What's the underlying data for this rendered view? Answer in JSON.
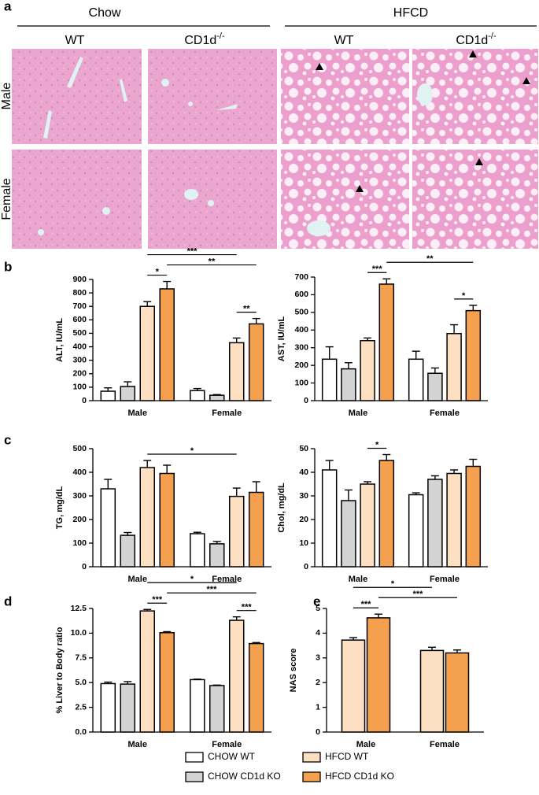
{
  "panel_a": {
    "label": "a",
    "diets": [
      "Chow",
      "HFCD"
    ],
    "genotypes": [
      "WT",
      {
        "text": "CD1d",
        "sup": "-/-"
      }
    ],
    "sexes": [
      "Male",
      "Female"
    ]
  },
  "chart_data": [
    {
      "type": "bar",
      "label": "b",
      "ylabel": "ALT, IU/mL",
      "categories": [
        "Male",
        "Female"
      ],
      "ylim": [
        0,
        900
      ],
      "yticks": [
        0,
        100,
        200,
        300,
        400,
        500,
        600,
        700,
        800,
        900
      ],
      "series": [
        {
          "color": "#ffffff",
          "values": [
            70,
            75
          ],
          "errors": [
            25,
            15
          ]
        },
        {
          "color": "#d3d3d3",
          "values": [
            105,
            40
          ],
          "errors": [
            35,
            5
          ]
        },
        {
          "color": "#fde0c2",
          "values": [
            700,
            430
          ],
          "errors": [
            35,
            35
          ]
        },
        {
          "color": "#f5a04e",
          "values": [
            830,
            570
          ],
          "errors": [
            55,
            40
          ]
        }
      ],
      "annotations": [
        {
          "text": "**",
          "between": [
            [
              2,
              1
            ],
            [
              3,
              1
            ]
          ]
        },
        {
          "text": "*",
          "between": [
            [
              2,
              0
            ],
            [
              3,
              0
            ]
          ]
        },
        {
          "text": "**",
          "between": [
            [
              3,
              0
            ],
            [
              3,
              1
            ]
          ]
        },
        {
          "text": "***",
          "between": [
            [
              2,
              0
            ],
            [
              2,
              1
            ]
          ]
        }
      ]
    },
    {
      "type": "bar",
      "ylabel": "AST, IU/mL",
      "categories": [
        "Male",
        "Female"
      ],
      "ylim": [
        0,
        700
      ],
      "yticks": [
        0,
        100,
        200,
        300,
        400,
        500,
        600,
        700
      ],
      "series": [
        {
          "color": "#ffffff",
          "values": [
            235,
            235
          ],
          "errors": [
            70,
            45
          ]
        },
        {
          "color": "#d3d3d3",
          "values": [
            180,
            155
          ],
          "errors": [
            35,
            30
          ]
        },
        {
          "color": "#fde0c2",
          "values": [
            340,
            380
          ],
          "errors": [
            15,
            50
          ]
        },
        {
          "color": "#f5a04e",
          "values": [
            660,
            510
          ],
          "errors": [
            30,
            30
          ]
        }
      ],
      "annotations": [
        {
          "text": "*",
          "between": [
            [
              2,
              1
            ],
            [
              3,
              1
            ]
          ]
        },
        {
          "text": "***",
          "between": [
            [
              2,
              0
            ],
            [
              3,
              0
            ]
          ]
        },
        {
          "text": "**",
          "between": [
            [
              3,
              0
            ],
            [
              3,
              1
            ]
          ]
        }
      ]
    },
    {
      "type": "bar",
      "label": "c",
      "ylabel": "TG, mg/dL",
      "categories": [
        "Male",
        "Female"
      ],
      "ylim": [
        0,
        500
      ],
      "yticks": [
        0,
        100,
        200,
        300,
        400,
        500
      ],
      "series": [
        {
          "color": "#ffffff",
          "values": [
            330,
            140
          ],
          "errors": [
            40,
            6
          ]
        },
        {
          "color": "#d3d3d3",
          "values": [
            133,
            97
          ],
          "errors": [
            12,
            10
          ]
        },
        {
          "color": "#fde0c2",
          "values": [
            420,
            298
          ],
          "errors": [
            30,
            35
          ]
        },
        {
          "color": "#f5a04e",
          "values": [
            395,
            315
          ],
          "errors": [
            35,
            45
          ]
        }
      ],
      "annotations": [
        {
          "text": "*",
          "between": [
            [
              2,
              0
            ],
            [
              2,
              1
            ]
          ]
        }
      ]
    },
    {
      "type": "bar",
      "ylabel": "Chol, mg/dL",
      "categories": [
        "Male",
        "Female"
      ],
      "ylim": [
        0,
        50
      ],
      "yticks": [
        0,
        10,
        20,
        30,
        40,
        50
      ],
      "series": [
        {
          "color": "#ffffff",
          "values": [
            41,
            30.5
          ],
          "errors": [
            4,
            0.8
          ]
        },
        {
          "color": "#d3d3d3",
          "values": [
            28,
            37
          ],
          "errors": [
            4.5,
            1.5
          ]
        },
        {
          "color": "#fde0c2",
          "values": [
            35,
            39.5
          ],
          "errors": [
            1,
            1.5
          ]
        },
        {
          "color": "#f5a04e",
          "values": [
            45,
            42.5
          ],
          "errors": [
            2.5,
            3
          ]
        }
      ],
      "annotations": [
        {
          "text": "*",
          "between": [
            [
              2,
              0
            ],
            [
              3,
              0
            ]
          ]
        }
      ]
    },
    {
      "type": "bar",
      "label": "d",
      "ylabel": "% Liver to Body ratio",
      "categories": [
        "Male",
        "Female"
      ],
      "ylim": [
        0,
        12.5
      ],
      "yticks": [
        {
          "value": 0,
          "label": "0.0"
        },
        2.5,
        {
          "value": 5,
          "label": "5.0"
        },
        7.5,
        {
          "value": 10,
          "label": "10.0"
        },
        12.5
      ],
      "series": [
        {
          "color": "#ffffff",
          "values": [
            4.9,
            5.3
          ],
          "errors": [
            0.15,
            0.05
          ]
        },
        {
          "color": "#d3d3d3",
          "values": [
            4.85,
            4.7
          ],
          "errors": [
            0.25,
            0.05
          ]
        },
        {
          "color": "#fde0c2",
          "values": [
            12.25,
            11.3
          ],
          "errors": [
            0.15,
            0.35
          ]
        },
        {
          "color": "#f5a04e",
          "values": [
            10.05,
            8.95
          ],
          "errors": [
            0.1,
            0.1
          ]
        }
      ],
      "annotations": [
        {
          "text": "***",
          "between": [
            [
              2,
              0
            ],
            [
              3,
              0
            ]
          ]
        },
        {
          "text": "***",
          "between": [
            [
              2,
              1
            ],
            [
              3,
              1
            ]
          ]
        },
        {
          "text": "***",
          "between": [
            [
              3,
              0
            ],
            [
              3,
              1
            ]
          ]
        },
        {
          "text": "*",
          "between": [
            [
              2,
              0
            ],
            [
              2,
              1
            ]
          ]
        }
      ]
    },
    {
      "type": "bar",
      "label": "e",
      "ylabel": "NAS score",
      "categories": [
        "Male",
        "Female"
      ],
      "ylim": [
        0,
        5
      ],
      "yticks": [
        0,
        1,
        2,
        3,
        4,
        5
      ],
      "series": [
        {
          "color": "#fde0c2",
          "values": [
            3.72,
            3.3
          ],
          "errors": [
            0.1,
            0.13
          ]
        },
        {
          "color": "#f5a04e",
          "values": [
            4.62,
            3.2
          ],
          "errors": [
            0.15,
            0.12
          ]
        }
      ],
      "annotations": [
        {
          "text": "***",
          "between": [
            [
              0,
              0
            ],
            [
              1,
              0
            ]
          ]
        },
        {
          "text": "***",
          "between": [
            [
              1,
              0
            ],
            [
              1,
              1
            ]
          ]
        },
        {
          "text": "*",
          "between": [
            [
              0,
              0
            ],
            [
              0,
              1
            ]
          ]
        }
      ]
    }
  ],
  "legend": [
    {
      "name": "CHOW WT",
      "color": "#ffffff"
    },
    {
      "name": "CHOW CD1d KO",
      "color": "#d3d3d3"
    },
    {
      "name": "HFCD WT",
      "color": "#fde0c2"
    },
    {
      "name": "HFCD CD1d KO",
      "color": "#f5a04e"
    }
  ]
}
